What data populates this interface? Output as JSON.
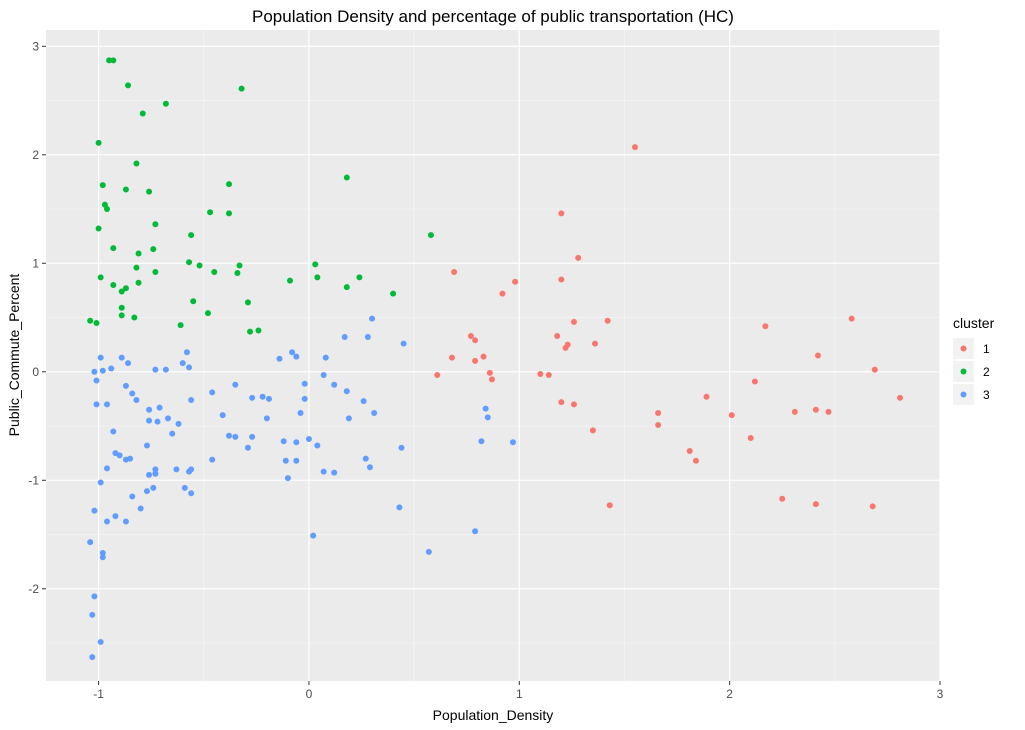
{
  "chart_data": {
    "type": "scatter",
    "title": "Population Density and percentage of public transportation (HC)",
    "xlabel": "Population_Density",
    "ylabel": "Public_Commute_Percent",
    "xlim": [
      -1.25,
      3.0
    ],
    "ylim": [
      -2.85,
      3.15
    ],
    "x_ticks": [
      -1,
      0,
      1,
      2,
      3
    ],
    "x_tick_labels": [
      "-1",
      "0",
      "1",
      "2",
      "3"
    ],
    "y_ticks": [
      -2,
      -1,
      0,
      1,
      2,
      3
    ],
    "y_tick_labels": [
      "-2",
      "-1",
      "0",
      "1",
      "2",
      "3"
    ],
    "grid": true,
    "background": "#ebebeb",
    "legend": {
      "title": "cluster",
      "position": "right",
      "entries": [
        "1",
        "2",
        "3"
      ]
    },
    "series": [
      {
        "name": "1",
        "color": "#f8766d",
        "points": [
          [
            1.55,
            2.07
          ],
          [
            1.2,
            1.46
          ],
          [
            1.28,
            1.05
          ],
          [
            0.69,
            0.92
          ],
          [
            1.2,
            0.85
          ],
          [
            0.98,
            0.83
          ],
          [
            0.92,
            0.72
          ],
          [
            2.58,
            0.49
          ],
          [
            1.26,
            0.46
          ],
          [
            1.42,
            0.47
          ],
          [
            2.17,
            0.42
          ],
          [
            0.77,
            0.33
          ],
          [
            1.18,
            0.33
          ],
          [
            0.79,
            0.29
          ],
          [
            1.36,
            0.26
          ],
          [
            1.23,
            0.25
          ],
          [
            1.22,
            0.22
          ],
          [
            2.42,
            0.15
          ],
          [
            0.68,
            0.13
          ],
          [
            0.83,
            0.14
          ],
          [
            0.79,
            0.1
          ],
          [
            0.86,
            -0.01
          ],
          [
            2.69,
            0.02
          ],
          [
            1.1,
            -0.02
          ],
          [
            1.14,
            -0.03
          ],
          [
            0.61,
            -0.03
          ],
          [
            0.87,
            -0.07
          ],
          [
            2.12,
            -0.09
          ],
          [
            1.89,
            -0.23
          ],
          [
            2.81,
            -0.24
          ],
          [
            1.2,
            -0.28
          ],
          [
            1.26,
            -0.3
          ],
          [
            2.41,
            -0.35
          ],
          [
            2.31,
            -0.37
          ],
          [
            2.47,
            -0.37
          ],
          [
            1.66,
            -0.38
          ],
          [
            2.01,
            -0.4
          ],
          [
            1.66,
            -0.49
          ],
          [
            1.35,
            -0.54
          ],
          [
            2.1,
            -0.61
          ],
          [
            1.81,
            -0.73
          ],
          [
            1.84,
            -0.82
          ],
          [
            2.25,
            -1.17
          ],
          [
            2.41,
            -1.22
          ],
          [
            2.68,
            -1.24
          ],
          [
            1.43,
            -1.23
          ]
        ]
      },
      {
        "name": "2",
        "color": "#00ba38",
        "points": [
          [
            -0.95,
            2.87
          ],
          [
            -0.93,
            2.87
          ],
          [
            -0.86,
            2.64
          ],
          [
            -0.68,
            2.47
          ],
          [
            -0.32,
            2.61
          ],
          [
            -0.79,
            2.38
          ],
          [
            -1.0,
            2.11
          ],
          [
            -0.82,
            1.92
          ],
          [
            -0.98,
            1.72
          ],
          [
            -0.87,
            1.68
          ],
          [
            -0.76,
            1.66
          ],
          [
            -0.38,
            1.73
          ],
          [
            0.18,
            1.79
          ],
          [
            -0.97,
            1.54
          ],
          [
            -0.96,
            1.5
          ],
          [
            -0.47,
            1.47
          ],
          [
            -0.38,
            1.46
          ],
          [
            -0.73,
            1.36
          ],
          [
            -1.0,
            1.32
          ],
          [
            -0.56,
            1.26
          ],
          [
            0.58,
            1.26
          ],
          [
            -0.93,
            1.14
          ],
          [
            -0.74,
            1.13
          ],
          [
            -0.81,
            1.09
          ],
          [
            -0.57,
            1.01
          ],
          [
            -0.52,
            0.98
          ],
          [
            0.03,
            0.99
          ],
          [
            -0.33,
            0.98
          ],
          [
            -0.82,
            0.96
          ],
          [
            -0.73,
            0.92
          ],
          [
            -0.45,
            0.92
          ],
          [
            -0.34,
            0.91
          ],
          [
            -0.99,
            0.87
          ],
          [
            0.04,
            0.87
          ],
          [
            0.24,
            0.87
          ],
          [
            -0.09,
            0.84
          ],
          [
            -0.81,
            0.82
          ],
          [
            -0.93,
            0.8
          ],
          [
            0.18,
            0.78
          ],
          [
            -0.87,
            0.77
          ],
          [
            -0.89,
            0.74
          ],
          [
            0.4,
            0.72
          ],
          [
            -0.55,
            0.65
          ],
          [
            -0.29,
            0.64
          ],
          [
            -0.89,
            0.59
          ],
          [
            -0.48,
            0.54
          ],
          [
            -0.89,
            0.52
          ],
          [
            -0.83,
            0.5
          ],
          [
            -1.04,
            0.47
          ],
          [
            -1.01,
            0.45
          ],
          [
            -0.61,
            0.43
          ],
          [
            -0.28,
            0.37
          ],
          [
            -0.24,
            0.38
          ]
        ]
      },
      {
        "name": "3",
        "color": "#619cff",
        "points": [
          [
            0.3,
            0.49
          ],
          [
            0.17,
            0.32
          ],
          [
            0.28,
            0.32
          ],
          [
            0.45,
            0.26
          ],
          [
            -0.58,
            0.18
          ],
          [
            -0.08,
            0.18
          ],
          [
            -0.06,
            0.14
          ],
          [
            -0.89,
            0.13
          ],
          [
            -0.99,
            0.13
          ],
          [
            -0.14,
            0.12
          ],
          [
            0.08,
            0.13
          ],
          [
            -0.86,
            0.08
          ],
          [
            -0.6,
            0.08
          ],
          [
            -0.94,
            0.03
          ],
          [
            -0.57,
            0.04
          ],
          [
            -0.98,
            0.01
          ],
          [
            -1.02,
            0.0
          ],
          [
            -0.73,
            0.02
          ],
          [
            -0.68,
            0.02
          ],
          [
            0.07,
            -0.03
          ],
          [
            -1.01,
            -0.08
          ],
          [
            -0.35,
            -0.12
          ],
          [
            -0.87,
            -0.13
          ],
          [
            -0.02,
            -0.11
          ],
          [
            0.12,
            -0.12
          ],
          [
            -0.46,
            -0.19
          ],
          [
            -0.84,
            -0.2
          ],
          [
            0.18,
            -0.18
          ],
          [
            -0.22,
            -0.23
          ],
          [
            -0.27,
            -0.24
          ],
          [
            -0.82,
            -0.26
          ],
          [
            -0.19,
            -0.25
          ],
          [
            -0.02,
            -0.25
          ],
          [
            -0.56,
            -0.26
          ],
          [
            0.26,
            -0.27
          ],
          [
            -1.01,
            -0.3
          ],
          [
            -0.96,
            -0.3
          ],
          [
            -0.71,
            -0.33
          ],
          [
            -0.76,
            -0.35
          ],
          [
            -0.04,
            -0.38
          ],
          [
            0.31,
            -0.38
          ],
          [
            -0.41,
            -0.4
          ],
          [
            0.84,
            -0.34
          ],
          [
            0.85,
            -0.42
          ],
          [
            -0.2,
            -0.43
          ],
          [
            0.19,
            -0.43
          ],
          [
            -0.76,
            -0.45
          ],
          [
            -0.72,
            -0.46
          ],
          [
            -0.67,
            -0.43
          ],
          [
            -0.62,
            -0.48
          ],
          [
            -0.65,
            -0.57
          ],
          [
            -0.93,
            -0.55
          ],
          [
            -0.38,
            -0.59
          ],
          [
            -0.35,
            -0.6
          ],
          [
            -0.27,
            -0.6
          ],
          [
            -0.12,
            -0.64
          ],
          [
            0.0,
            -0.62
          ],
          [
            0.82,
            -0.64
          ],
          [
            0.97,
            -0.65
          ],
          [
            -0.06,
            -0.65
          ],
          [
            -0.77,
            -0.68
          ],
          [
            0.04,
            -0.68
          ],
          [
            0.44,
            -0.7
          ],
          [
            -0.29,
            -0.7
          ],
          [
            -0.92,
            -0.75
          ],
          [
            -0.9,
            -0.77
          ],
          [
            -0.11,
            -0.82
          ],
          [
            -0.46,
            -0.81
          ],
          [
            0.27,
            -0.8
          ],
          [
            -0.06,
            -0.82
          ],
          [
            -0.87,
            -0.81
          ],
          [
            -0.85,
            -0.8
          ],
          [
            -0.63,
            -0.9
          ],
          [
            -0.56,
            -0.9
          ],
          [
            -0.73,
            -0.9
          ],
          [
            -0.96,
            -0.89
          ],
          [
            -0.57,
            -0.92
          ],
          [
            -0.73,
            -0.94
          ],
          [
            -0.76,
            -0.95
          ],
          [
            0.29,
            -0.88
          ],
          [
            0.07,
            -0.92
          ],
          [
            0.12,
            -0.93
          ],
          [
            -0.1,
            -0.98
          ],
          [
            -0.99,
            -1.02
          ],
          [
            -0.59,
            -1.07
          ],
          [
            -0.74,
            -1.07
          ],
          [
            -0.77,
            -1.1
          ],
          [
            -0.56,
            -1.12
          ],
          [
            -0.84,
            -1.15
          ],
          [
            -1.02,
            -1.28
          ],
          [
            -0.8,
            -1.26
          ],
          [
            0.43,
            -1.25
          ],
          [
            -0.92,
            -1.33
          ],
          [
            -0.96,
            -1.38
          ],
          [
            -0.87,
            -1.38
          ],
          [
            0.02,
            -1.51
          ],
          [
            0.79,
            -1.47
          ],
          [
            -1.04,
            -1.57
          ],
          [
            0.57,
            -1.66
          ],
          [
            -0.98,
            -1.67
          ],
          [
            -0.98,
            -1.71
          ],
          [
            -1.02,
            -2.07
          ],
          [
            -1.03,
            -2.24
          ],
          [
            -0.99,
            -2.49
          ],
          [
            -1.03,
            -2.63
          ]
        ]
      }
    ]
  }
}
